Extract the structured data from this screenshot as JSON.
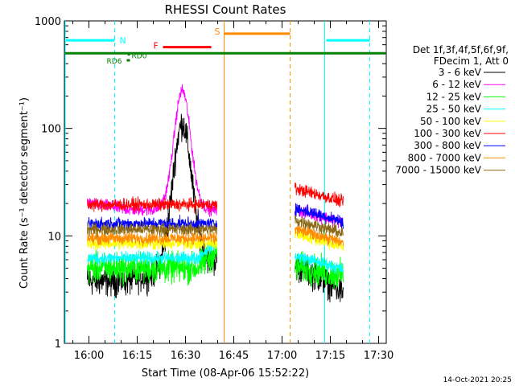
{
  "chart_data": {
    "type": "line",
    "title": "RHESSI Count Rates",
    "xlabel": "Start Time (08-Apr-06 15:52:22)",
    "ylabel": "Count Rate (s⁻¹ detector segment⁻¹)",
    "y_scale": "log",
    "ylim": [
      1,
      1000
    ],
    "xlim": [
      "15:52:22",
      "17:32:22"
    ],
    "x_ticks": [
      "16:00",
      "16:15",
      "16:30",
      "16:45",
      "17:00",
      "17:15",
      "17:30"
    ],
    "y_ticks": [
      "1",
      "10",
      "100",
      "1000"
    ],
    "grid": false,
    "legend_position": "right",
    "legend_header": [
      "Det 1f,3f,4f,5f,6f,9f,",
      "FDecim 1, Att 0"
    ],
    "timestamp": "14-Oct-2021 20:25",
    "segments": [
      {
        "start": "15:59:30",
        "end": "16:39:45"
      },
      {
        "start": "17:04:00",
        "end": "17:19:00"
      }
    ],
    "series": [
      {
        "name": "3 - 6 keV",
        "color": "#000000",
        "pre": 3.8,
        "post": 5.3,
        "peak": 110
      },
      {
        "name": "6 - 12 keV",
        "color": "#ff00ff",
        "pre": 17.5,
        "post": 17.5,
        "peak": 225
      },
      {
        "name": "12 - 25 keV",
        "color": "#00ff00",
        "pre": 5.0,
        "post": 4.7
      },
      {
        "name": "25 - 50 keV",
        "color": "#00ffff",
        "pre": 6.2,
        "post": 6.5
      },
      {
        "name": "50 - 100 keV",
        "color": "#ffff00",
        "pre": 8.5,
        "post": 10.5
      },
      {
        "name": "100 - 300 keV",
        "color": "#ff0000",
        "pre": 19.5,
        "post": 27.5
      },
      {
        "name": "300 - 800 keV",
        "color": "#0000ff",
        "pre": 13.0,
        "post": 18.0
      },
      {
        "name": "800 - 7000 keV",
        "color": "#ff8c00",
        "pre": 9.5,
        "post": 11.5
      },
      {
        "name": "7000 - 15000 keV",
        "color": "#8b6914",
        "pre": 11.5,
        "post": 14.0
      }
    ],
    "annotations": {
      "night": {
        "label": "N",
        "color": "#00ffff",
        "intervals": [
          {
            "start": "15:52:22",
            "end": "16:08:00"
          },
          {
            "start": "17:13:15",
            "end": "17:27:15"
          }
        ],
        "level": 660
      },
      "saa": {
        "label": "S",
        "color": "#ff8c00",
        "intervals": [
          {
            "start": "16:42:00",
            "end": "17:02:30"
          }
        ],
        "level": 760
      },
      "flare": {
        "label": "F",
        "color": "#ff0000",
        "intervals": [
          {
            "start": "16:23:00",
            "end": "16:38:00"
          }
        ],
        "level": 570
      },
      "data_gap": {
        "color": "#008000",
        "intervals": [
          {
            "start": "15:52:22",
            "end": "17:32:22"
          }
        ],
        "level": 500
      },
      "rd0": {
        "label": "RD0",
        "color": "#008000",
        "time": "16:12:00",
        "level": 480
      },
      "rd6": {
        "label": "RD6",
        "color": "#008000",
        "time": "16:11:00",
        "level": 430
      }
    }
  }
}
